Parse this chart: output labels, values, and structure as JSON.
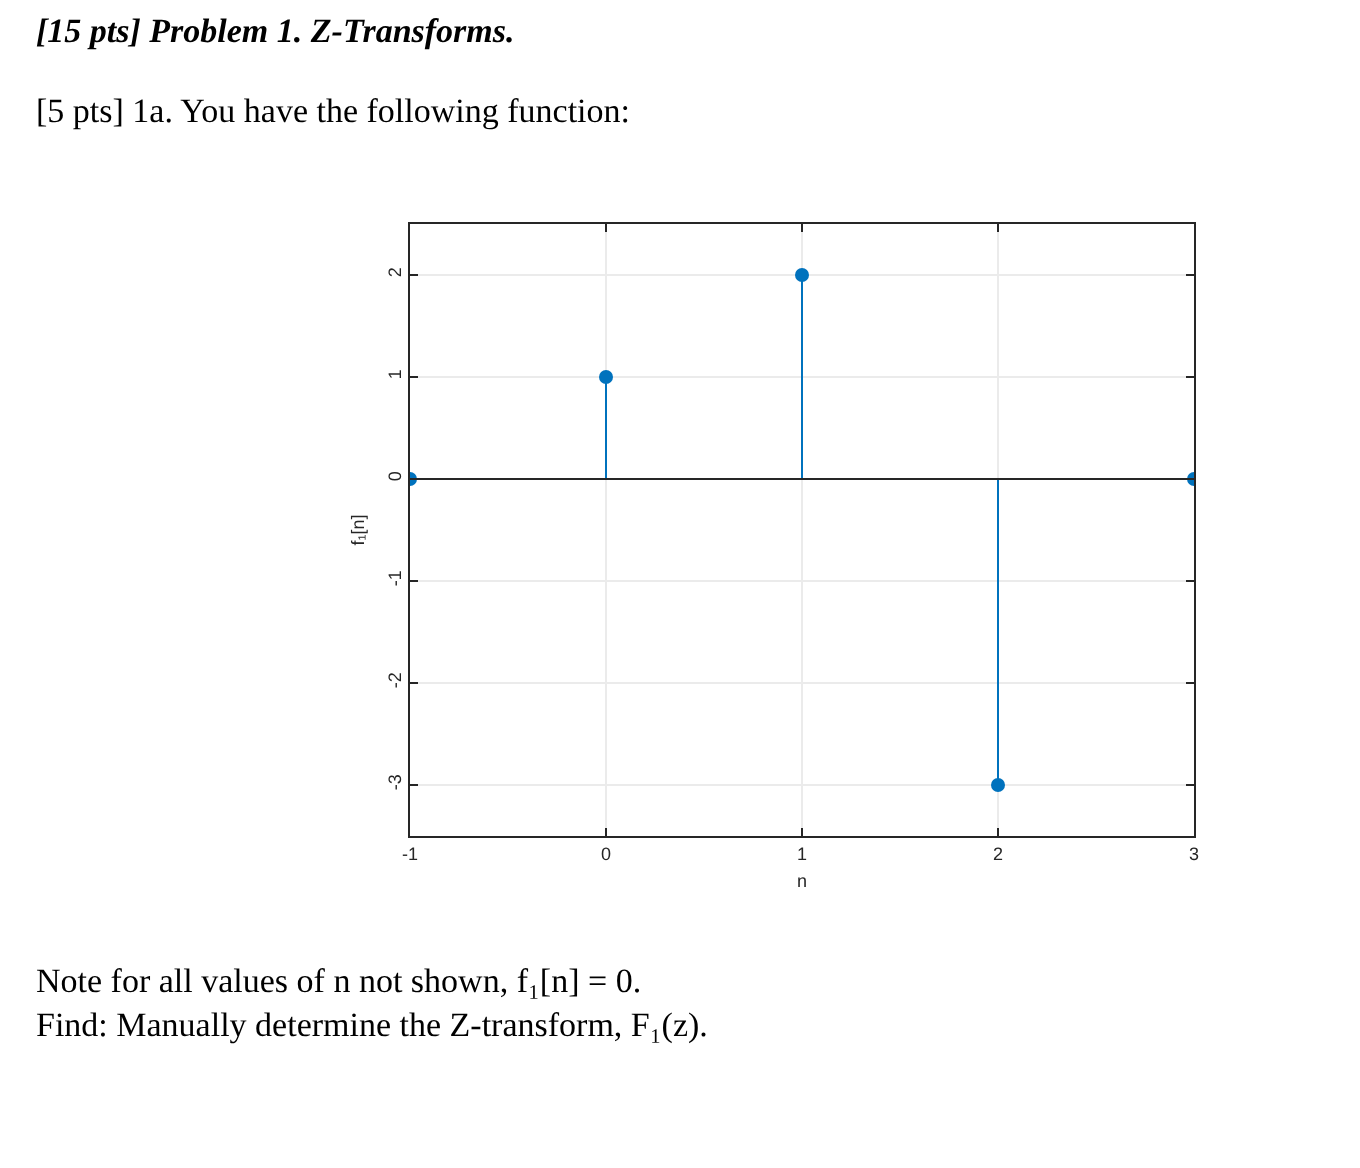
{
  "chart_data": {
    "type": "lollipop",
    "title": "[15 pts] Problem 1. Z-Transforms.",
    "subtitle": "[5 pts] 1a. You have the following function:",
    "xlabel": "n",
    "ylabel": "f₁[n]",
    "x": [
      -1,
      0,
      1,
      2,
      3
    ],
    "values": [
      0,
      1,
      2,
      -3,
      0
    ],
    "color": "#0072bd",
    "marker": "circle",
    "xlim": [
      -1,
      3
    ],
    "xticks": [
      -1,
      0,
      1,
      2,
      3
    ],
    "ylim": [
      -3.5,
      2.5
    ],
    "yticks": [
      -3,
      -2,
      -1,
      0,
      1,
      2
    ],
    "grid": true,
    "ref_lines": [
      {
        "axis": "y",
        "value": 0,
        "color": "#262626"
      }
    ],
    "annotations": [
      "Note for all values of n not shown, f₁[n] = 0.",
      "Find: Manually determine the Z-transform, F₁(z)."
    ]
  }
}
